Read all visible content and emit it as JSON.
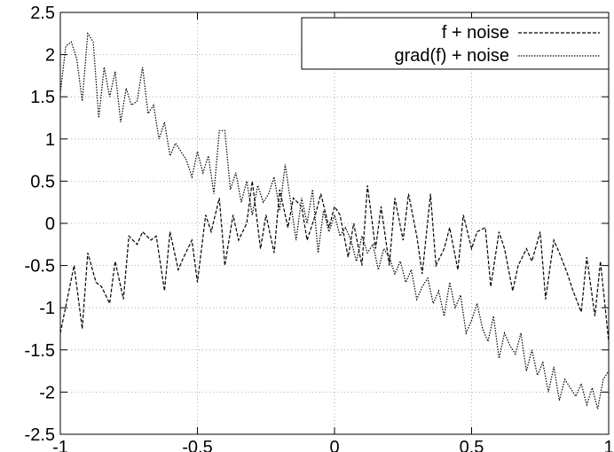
{
  "chart_data": {
    "type": "line",
    "title": "",
    "xlabel": "",
    "ylabel": "",
    "xlim": [
      -1,
      1
    ],
    "ylim": [
      -2.5,
      2.5
    ],
    "grid": true,
    "legend_position": "top-right",
    "x_ticks": [
      "-1",
      "-0.5",
      "0",
      "0.5",
      "1"
    ],
    "y_ticks": [
      "2.5",
      "2",
      "1.5",
      "1",
      "0.5",
      "0",
      "-0.5",
      "-1",
      "-1.5",
      "-2",
      "-2.5"
    ],
    "series": [
      {
        "name": "f + noise",
        "style": "dashed",
        "color": "#000000",
        "x": [
          -1,
          -0.95,
          -0.92,
          -0.9,
          -0.87,
          -0.85,
          -0.82,
          -0.8,
          -0.77,
          -0.75,
          -0.72,
          -0.7,
          -0.67,
          -0.65,
          -0.62,
          -0.6,
          -0.57,
          -0.55,
          -0.52,
          -0.5,
          -0.47,
          -0.45,
          -0.42,
          -0.4,
          -0.37,
          -0.35,
          -0.32,
          -0.3,
          -0.27,
          -0.25,
          -0.22,
          -0.2,
          -0.17,
          -0.15,
          -0.12,
          -0.1,
          -0.07,
          -0.05,
          -0.02,
          0,
          0.02,
          0.05,
          0.07,
          0.1,
          0.12,
          0.15,
          0.17,
          0.2,
          0.22,
          0.25,
          0.27,
          0.3,
          0.32,
          0.35,
          0.37,
          0.4,
          0.42,
          0.45,
          0.47,
          0.5,
          0.52,
          0.55,
          0.57,
          0.6,
          0.62,
          0.65,
          0.67,
          0.7,
          0.72,
          0.75,
          0.77,
          0.8,
          0.82,
          0.85,
          0.87,
          0.9,
          0.92,
          0.95,
          0.97,
          1
        ],
        "values": [
          -1.3,
          -0.5,
          -1.25,
          -0.35,
          -0.7,
          -0.75,
          -0.95,
          -0.45,
          -0.9,
          -0.15,
          -0.25,
          -0.1,
          -0.2,
          -0.15,
          -0.8,
          -0.1,
          -0.55,
          -0.4,
          -0.2,
          -0.7,
          0.1,
          -0.1,
          0.3,
          -0.5,
          0.1,
          -0.2,
          0.0,
          0.5,
          -0.3,
          0.1,
          -0.35,
          0.4,
          -0.05,
          0.3,
          0.2,
          -0.2,
          0.1,
          0.35,
          -0.05,
          0.2,
          0.1,
          -0.4,
          0.0,
          -0.5,
          0.45,
          -0.3,
          0.2,
          -0.5,
          0.3,
          -0.2,
          0.35,
          -0.15,
          -0.6,
          0.35,
          -0.5,
          -0.3,
          -0.05,
          -0.55,
          0.1,
          -0.3,
          -0.1,
          -0.05,
          -0.75,
          -0.1,
          -0.3,
          -0.8,
          -0.5,
          -0.3,
          -0.45,
          -0.1,
          -0.9,
          -0.2,
          -0.35,
          -0.6,
          -0.8,
          -1.05,
          -0.4,
          -1.1,
          -0.45,
          -1.4
        ]
      },
      {
        "name": "grad(f) + noise",
        "style": "dotted",
        "color": "#000000",
        "x": [
          -1,
          -0.98,
          -0.96,
          -0.94,
          -0.92,
          -0.9,
          -0.88,
          -0.86,
          -0.84,
          -0.82,
          -0.8,
          -0.78,
          -0.76,
          -0.74,
          -0.72,
          -0.7,
          -0.68,
          -0.66,
          -0.64,
          -0.62,
          -0.6,
          -0.58,
          -0.56,
          -0.54,
          -0.52,
          -0.5,
          -0.48,
          -0.46,
          -0.44,
          -0.42,
          -0.4,
          -0.38,
          -0.36,
          -0.34,
          -0.32,
          -0.3,
          -0.28,
          -0.26,
          -0.24,
          -0.22,
          -0.2,
          -0.18,
          -0.16,
          -0.14,
          -0.12,
          -0.1,
          -0.08,
          -0.06,
          -0.04,
          -0.02,
          0,
          0.02,
          0.04,
          0.06,
          0.08,
          0.1,
          0.12,
          0.14,
          0.16,
          0.18,
          0.2,
          0.22,
          0.24,
          0.26,
          0.28,
          0.3,
          0.32,
          0.34,
          0.36,
          0.38,
          0.4,
          0.42,
          0.44,
          0.46,
          0.48,
          0.5,
          0.52,
          0.54,
          0.56,
          0.58,
          0.6,
          0.62,
          0.64,
          0.66,
          0.68,
          0.7,
          0.72,
          0.74,
          0.76,
          0.78,
          0.8,
          0.82,
          0.84,
          0.86,
          0.88,
          0.9,
          0.92,
          0.94,
          0.96,
          0.98,
          1
        ],
        "values": [
          1.55,
          2.1,
          2.15,
          1.95,
          1.45,
          2.25,
          2.15,
          1.25,
          1.85,
          1.5,
          1.8,
          1.2,
          1.6,
          1.4,
          1.45,
          1.85,
          1.3,
          1.4,
          1.0,
          1.2,
          0.8,
          0.95,
          0.85,
          0.75,
          0.55,
          0.85,
          0.6,
          0.8,
          0.35,
          1.1,
          1.1,
          0.4,
          0.6,
          0.25,
          0.5,
          0.1,
          0.45,
          0.25,
          0.35,
          0.55,
          0.15,
          0.7,
          0.25,
          -0.2,
          0.3,
          0.0,
          0.4,
          -0.35,
          0.15,
          -0.1,
          0.1,
          -0.15,
          -0.05,
          -0.2,
          -0.45,
          -0.15,
          -0.35,
          -0.25,
          -0.55,
          -0.3,
          -0.4,
          -0.6,
          -0.45,
          -0.7,
          -0.55,
          -0.9,
          -0.75,
          -0.65,
          -0.95,
          -0.8,
          -1.1,
          -0.7,
          -1.0,
          -0.85,
          -1.3,
          -1.15,
          -0.95,
          -1.25,
          -1.4,
          -1.1,
          -1.6,
          -1.3,
          -1.45,
          -1.55,
          -1.3,
          -1.75,
          -1.5,
          -1.8,
          -1.65,
          -2.0,
          -1.7,
          -2.1,
          -1.85,
          -1.95,
          -2.05,
          -1.9,
          -2.15,
          -1.95,
          -2.2,
          -1.85,
          -1.75
        ]
      }
    ]
  }
}
